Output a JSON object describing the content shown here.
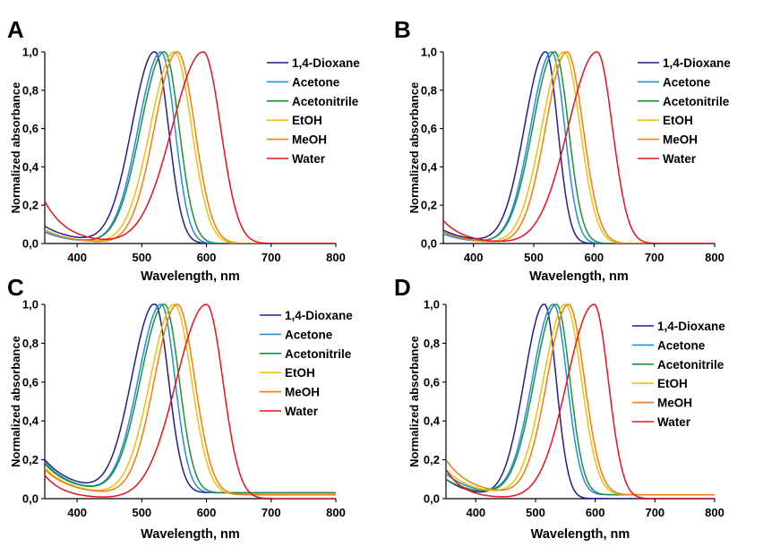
{
  "chart_data": [
    {
      "panel": "A",
      "type": "line",
      "xlabel": "Wavelength, nm",
      "ylabel": "Normalized absorbance",
      "xlim": [
        350,
        800
      ],
      "ylim": [
        0,
        1.0
      ],
      "xticks": [
        "400",
        "500",
        "600",
        "700",
        "800"
      ],
      "yticks": [
        "0,0",
        "0,2",
        "0,4",
        "0,6",
        "0,8",
        "1,0"
      ],
      "legend": "right",
      "series": [
        {
          "name": "1,4-Dioxane",
          "color": "#1f1f8f",
          "peak": 520,
          "w_left": 50,
          "w_right": 30,
          "tail": 0.09,
          "tail_decay": 45,
          "x": [
            350,
            400,
            450,
            480,
            500,
            520,
            540,
            560,
            580,
            600,
            650,
            700,
            800
          ],
          "y": [
            0.09,
            0.09,
            0.37,
            0.76,
            0.94,
            1.0,
            0.79,
            0.32,
            0.06,
            0.01,
            0.0,
            0.0,
            0.0
          ]
        },
        {
          "name": "Acetone",
          "color": "#1c8fe0",
          "peak": 530,
          "w_left": 50,
          "w_right": 30,
          "tail": 0.06,
          "tail_decay": 40,
          "x": [
            350,
            400,
            450,
            500,
            530,
            550,
            570,
            590,
            620,
            700,
            800
          ],
          "y": [
            0.06,
            0.04,
            0.22,
            0.82,
            1.0,
            0.8,
            0.4,
            0.1,
            0.01,
            0.0,
            0.0
          ]
        },
        {
          "name": "Acetonitrile",
          "color": "#1e8f3a",
          "peak": 535,
          "w_left": 52,
          "w_right": 32,
          "tail": 0.07,
          "tail_decay": 40,
          "x": [
            350,
            400,
            450,
            500,
            535,
            560,
            580,
            600,
            630,
            700,
            800
          ],
          "y": [
            0.07,
            0.04,
            0.22,
            0.8,
            1.0,
            0.74,
            0.38,
            0.1,
            0.01,
            0.0,
            0.0
          ]
        },
        {
          "name": "EtOH",
          "color": "#f2c200",
          "peak": 550,
          "w_left": 52,
          "w_right": 38,
          "tail": 0.07,
          "tail_decay": 40,
          "x": [
            350,
            400,
            450,
            500,
            550,
            580,
            600,
            620,
            650,
            700,
            800
          ],
          "y": [
            0.07,
            0.04,
            0.14,
            0.6,
            1.0,
            0.78,
            0.47,
            0.2,
            0.03,
            0.0,
            0.0
          ]
        },
        {
          "name": "MeOH",
          "color": "#f07c1a",
          "peak": 555,
          "w_left": 50,
          "w_right": 38,
          "tail": 0.07,
          "tail_decay": 40,
          "x": [
            350,
            400,
            450,
            500,
            555,
            580,
            600,
            620,
            650,
            700,
            800
          ],
          "y": [
            0.07,
            0.04,
            0.12,
            0.54,
            1.0,
            0.84,
            0.55,
            0.25,
            0.04,
            0.0,
            0.0
          ]
        },
        {
          "name": "Water",
          "color": "#e8131c",
          "peak": 595,
          "w_left": 68,
          "w_right": 38,
          "tail": 0.22,
          "tail_decay": 35,
          "x": [
            350,
            400,
            450,
            500,
            550,
            595,
            620,
            640,
            660,
            700,
            800
          ],
          "y": [
            0.22,
            0.08,
            0.1,
            0.32,
            0.72,
            1.0,
            0.83,
            0.5,
            0.2,
            0.02,
            0.0
          ]
        }
      ]
    },
    {
      "panel": "B",
      "type": "line",
      "xlabel": "Wavelength, nm",
      "ylabel": "Normalized absorbance",
      "xlim": [
        350,
        800
      ],
      "ylim": [
        0,
        1.0
      ],
      "xticks": [
        "400",
        "500",
        "600",
        "700",
        "800"
      ],
      "yticks": [
        "0,0",
        "0,2",
        "0,4",
        "0,6",
        "0,8",
        "1,0"
      ],
      "legend": "right",
      "series": [
        {
          "name": "1,4-Dioxane",
          "color": "#1f1f8f",
          "peak": 520,
          "w_left": 50,
          "w_right": 28,
          "tail": 0.07,
          "tail_decay": 45,
          "x": [
            350,
            400,
            450,
            500,
            520,
            540,
            560,
            580,
            600,
            700,
            800
          ],
          "y": [
            0.07,
            0.06,
            0.37,
            0.94,
            1.0,
            0.76,
            0.28,
            0.04,
            0.0,
            0.0,
            0.0
          ]
        },
        {
          "name": "Acetone",
          "color": "#1c8fe0",
          "peak": 530,
          "w_left": 50,
          "w_right": 30,
          "tail": 0.05,
          "tail_decay": 40,
          "x": [
            350,
            400,
            450,
            500,
            530,
            550,
            570,
            590,
            620,
            700,
            800
          ],
          "y": [
            0.05,
            0.04,
            0.22,
            0.82,
            1.0,
            0.78,
            0.38,
            0.08,
            0.01,
            0.0,
            0.02
          ]
        },
        {
          "name": "Acetonitrile",
          "color": "#1e8f3a",
          "peak": 535,
          "w_left": 52,
          "w_right": 32,
          "tail": 0.06,
          "tail_decay": 40,
          "x": [
            350,
            400,
            450,
            500,
            535,
            560,
            580,
            600,
            630,
            700,
            800
          ],
          "y": [
            0.06,
            0.04,
            0.22,
            0.8,
            1.0,
            0.74,
            0.38,
            0.1,
            0.01,
            0.0,
            0.0
          ]
        },
        {
          "name": "EtOH",
          "color": "#f2c200",
          "peak": 550,
          "w_left": 52,
          "w_right": 38,
          "tail": 0.06,
          "tail_decay": 40,
          "x": [
            350,
            400,
            450,
            500,
            550,
            580,
            600,
            620,
            650,
            700,
            800
          ],
          "y": [
            0.06,
            0.04,
            0.14,
            0.6,
            1.0,
            0.78,
            0.47,
            0.2,
            0.03,
            0.0,
            0.0
          ]
        },
        {
          "name": "MeOH",
          "color": "#f07c1a",
          "peak": 555,
          "w_left": 50,
          "w_right": 38,
          "tail": 0.06,
          "tail_decay": 40,
          "x": [
            350,
            400,
            450,
            500,
            555,
            580,
            600,
            620,
            650,
            700,
            800
          ],
          "y": [
            0.06,
            0.04,
            0.12,
            0.54,
            1.0,
            0.84,
            0.55,
            0.25,
            0.04,
            0.0,
            0.0
          ]
        },
        {
          "name": "Water",
          "color": "#e8131c",
          "peak": 605,
          "w_left": 68,
          "w_right": 36,
          "tail": 0.12,
          "tail_decay": 35,
          "x": [
            350,
            400,
            450,
            500,
            550,
            605,
            630,
            650,
            670,
            700,
            800
          ],
          "y": [
            0.12,
            0.05,
            0.09,
            0.25,
            0.6,
            1.0,
            0.82,
            0.46,
            0.16,
            0.02,
            0.0
          ]
        }
      ]
    },
    {
      "panel": "C",
      "type": "line",
      "xlabel": "Wavelength, nm",
      "ylabel": "Normalized absorbance",
      "xlim": [
        350,
        800
      ],
      "ylim": [
        0,
        1.0
      ],
      "xticks": [
        "400",
        "500",
        "600",
        "700",
        "800"
      ],
      "yticks": [
        "0,0",
        "0,2",
        "0,4",
        "0,6",
        "0,8",
        "1,0"
      ],
      "legend": "right",
      "series": [
        {
          "name": "1,4-Dioxane",
          "color": "#1f1f8f",
          "peak": 520,
          "w_left": 50,
          "w_right": 30,
          "tail": 0.17,
          "tail_decay": 45,
          "floor": 0.03,
          "x": [
            350,
            400,
            450,
            500,
            520,
            540,
            560,
            580,
            600,
            700,
            800
          ],
          "y": [
            0.17,
            0.12,
            0.42,
            0.94,
            1.0,
            0.79,
            0.32,
            0.1,
            0.06,
            0.04,
            0.01
          ]
        },
        {
          "name": "Acetone",
          "color": "#1c8fe0",
          "peak": 530,
          "w_left": 50,
          "w_right": 30,
          "tail": 0.16,
          "tail_decay": 40,
          "floor": 0.03,
          "x": [
            350,
            400,
            450,
            500,
            530,
            550,
            570,
            590,
            620,
            700,
            800
          ],
          "y": [
            0.16,
            0.1,
            0.28,
            0.84,
            1.0,
            0.8,
            0.42,
            0.12,
            0.05,
            0.04,
            0.01
          ]
        },
        {
          "name": "Acetonitrile",
          "color": "#1e8f3a",
          "peak": 535,
          "w_left": 52,
          "w_right": 32,
          "tail": 0.15,
          "tail_decay": 40,
          "floor": 0.03,
          "x": [
            350,
            400,
            450,
            500,
            535,
            560,
            580,
            600,
            630,
            700,
            800
          ],
          "y": [
            0.15,
            0.09,
            0.25,
            0.8,
            1.0,
            0.74,
            0.4,
            0.13,
            0.05,
            0.04,
            0.01
          ]
        },
        {
          "name": "EtOH",
          "color": "#f2c200",
          "peak": 550,
          "w_left": 52,
          "w_right": 38,
          "tail": 0.14,
          "tail_decay": 40,
          "floor": 0.02,
          "x": [
            350,
            400,
            450,
            500,
            550,
            580,
            600,
            620,
            650,
            700,
            800
          ],
          "y": [
            0.14,
            0.08,
            0.17,
            0.6,
            1.0,
            0.78,
            0.48,
            0.2,
            0.05,
            0.03,
            0.01
          ]
        },
        {
          "name": "MeOH",
          "color": "#f07c1a",
          "peak": 555,
          "w_left": 50,
          "w_right": 38,
          "tail": 0.13,
          "tail_decay": 40,
          "floor": 0.02,
          "x": [
            350,
            400,
            450,
            500,
            555,
            580,
            600,
            620,
            650,
            700,
            800
          ],
          "y": [
            0.13,
            0.08,
            0.15,
            0.55,
            1.0,
            0.84,
            0.55,
            0.25,
            0.06,
            0.03,
            0.01
          ]
        },
        {
          "name": "Water",
          "color": "#e8131c",
          "peak": 600,
          "w_left": 66,
          "w_right": 36,
          "tail": 0.12,
          "tail_decay": 30,
          "floor": 0.0,
          "x": [
            350,
            400,
            450,
            500,
            550,
            600,
            625,
            645,
            665,
            700,
            800
          ],
          "y": [
            0.12,
            0.05,
            0.08,
            0.27,
            0.62,
            1.0,
            0.82,
            0.47,
            0.17,
            0.02,
            0.0
          ]
        }
      ]
    },
    {
      "panel": "D",
      "type": "line",
      "xlabel": "Wavelength, nm",
      "ylabel": "Normalized absorbance",
      "xlim": [
        350,
        800
      ],
      "ylim": [
        0,
        1.0
      ],
      "xticks": [
        "400",
        "500",
        "600",
        "700",
        "800"
      ],
      "yticks": [
        "0,0",
        "0,2",
        "0,4",
        "0,6",
        "0,8",
        "1,0"
      ],
      "legend": "right",
      "series": [
        {
          "name": "1,4-Dioxane",
          "color": "#1f1f8f",
          "peak": 515,
          "w_left": 48,
          "w_right": 28,
          "tail": 0.1,
          "tail_decay": 45,
          "x": [
            350,
            400,
            450,
            500,
            515,
            540,
            560,
            580,
            600,
            700,
            800
          ],
          "y": [
            0.1,
            0.09,
            0.38,
            0.95,
            1.0,
            0.74,
            0.26,
            0.04,
            0.01,
            0.0,
            0.0
          ]
        },
        {
          "name": "Acetone",
          "color": "#1c8fe0",
          "peak": 530,
          "w_left": 50,
          "w_right": 32,
          "tail": 0.11,
          "tail_decay": 40,
          "floor": 0.02,
          "x": [
            350,
            400,
            450,
            500,
            530,
            550,
            570,
            590,
            620,
            700,
            800
          ],
          "y": [
            0.11,
            0.08,
            0.26,
            0.82,
            1.0,
            0.8,
            0.42,
            0.12,
            0.05,
            0.03,
            0.02
          ]
        },
        {
          "name": "Acetonitrile",
          "color": "#1e8f3a",
          "peak": 535,
          "w_left": 52,
          "w_right": 32,
          "tail": 0.08,
          "tail_decay": 40,
          "floor": 0.02,
          "x": [
            350,
            400,
            450,
            500,
            535,
            560,
            580,
            600,
            630,
            750,
            800
          ],
          "y": [
            0.08,
            0.05,
            0.22,
            0.8,
            1.0,
            0.74,
            0.38,
            0.12,
            0.04,
            0.05,
            0.02
          ]
        },
        {
          "name": "EtOH",
          "color": "#f2c200",
          "peak": 550,
          "w_left": 52,
          "w_right": 38,
          "tail": 0.13,
          "tail_decay": 40,
          "floor": 0.02,
          "x": [
            350,
            400,
            450,
            500,
            550,
            580,
            600,
            620,
            650,
            700,
            800
          ],
          "y": [
            0.13,
            0.12,
            0.2,
            0.6,
            1.0,
            0.78,
            0.48,
            0.2,
            0.05,
            0.03,
            0.01
          ]
        },
        {
          "name": "MeOH",
          "color": "#f07c1a",
          "peak": 555,
          "w_left": 50,
          "w_right": 38,
          "tail": 0.18,
          "tail_decay": 40,
          "floor": 0.02,
          "x": [
            350,
            400,
            450,
            500,
            555,
            580,
            600,
            620,
            650,
            700,
            800
          ],
          "y": [
            0.18,
            0.14,
            0.2,
            0.56,
            1.0,
            0.84,
            0.55,
            0.25,
            0.06,
            0.03,
            0.01
          ]
        },
        {
          "name": "Water",
          "color": "#e8131c",
          "peak": 598,
          "w_left": 64,
          "w_right": 34,
          "tail": 0.15,
          "tail_decay": 30,
          "floor": 0.0,
          "x": [
            350,
            400,
            450,
            500,
            550,
            598,
            620,
            640,
            660,
            700,
            800
          ],
          "y": [
            0.15,
            0.06,
            0.08,
            0.28,
            0.64,
            1.0,
            0.84,
            0.48,
            0.17,
            0.02,
            0.0
          ]
        }
      ]
    }
  ]
}
